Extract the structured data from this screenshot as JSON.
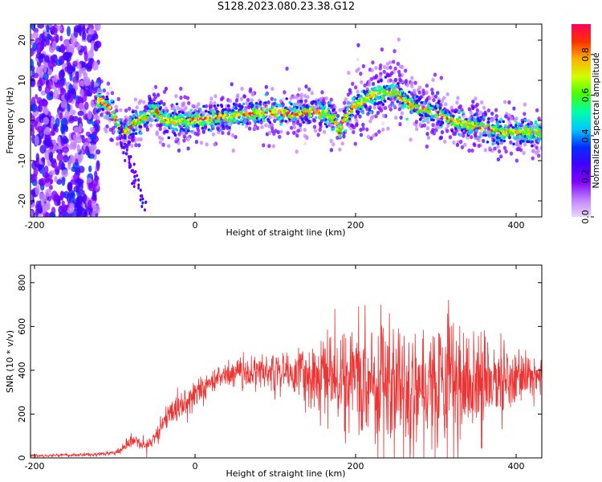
{
  "title": "S128.2023.080.23.38.G12",
  "colors": {
    "snr_line": "#ee3333",
    "spectrum_background": "#ffffff",
    "frame": "#000000",
    "colormap": [
      "#e8d8ff",
      "#c080ff",
      "#8000ff",
      "#4000ff",
      "#0030ff",
      "#00c8ff",
      "#00ffaa",
      "#44ff00",
      "#d0ff00",
      "#ffb000",
      "#ff3000",
      "#ff0060"
    ]
  },
  "chart_data": [
    {
      "type": "heatmap",
      "name": "spectrogram",
      "xlabel": "Height of straight line (km)",
      "ylabel": "Frequency (Hz)",
      "xlim": [
        -205,
        432
      ],
      "ylim": [
        -24,
        24
      ],
      "x_ticks": [
        -200,
        0,
        200,
        400
      ],
      "y_ticks": [
        20,
        10,
        0,
        -10,
        -20
      ],
      "grid": false,
      "colorbar": {
        "label": "Normalized spectral amplitude",
        "range": [
          0,
          0.95
        ],
        "ticks": [
          0.0,
          0.2,
          0.4,
          0.6,
          0.8
        ]
      },
      "signal_ridge": {
        "x": [
          -120,
          -110,
          -100,
          -95,
          -90,
          -85,
          -80,
          -70,
          -60,
          -50,
          -40,
          -20,
          0,
          20,
          40,
          60,
          80,
          100,
          120,
          140,
          160,
          175,
          180,
          185,
          195,
          210,
          230,
          250,
          260,
          280,
          300,
          320,
          340,
          360,
          380,
          400,
          432
        ],
        "y": [
          5,
          4,
          1,
          -2,
          -3,
          -3,
          -1,
          0,
          1,
          3,
          0,
          0,
          0,
          0.5,
          1,
          1.5,
          2,
          2,
          1.5,
          2,
          2,
          0,
          -3,
          0,
          3,
          5,
          7,
          7,
          5,
          3,
          2,
          0,
          -1,
          -2,
          -3,
          -3,
          -3
        ]
      }
    },
    {
      "type": "line",
      "name": "snr",
      "xlabel": "Height of straight line (km)",
      "ylabel": "SNR (10 * v/v)",
      "xlim": [
        -205,
        432
      ],
      "ylim": [
        0,
        880
      ],
      "x_ticks": [
        -200,
        0,
        200,
        400
      ],
      "y_ticks": [
        0,
        200,
        400,
        600,
        800
      ],
      "grid": false,
      "envelope": {
        "x": [
          -205,
          -120,
          -100,
          -90,
          -80,
          -70,
          -60,
          -50,
          -40,
          -30,
          -20,
          -10,
          0,
          10,
          20,
          30,
          40,
          60,
          80,
          100,
          120,
          140,
          160,
          180,
          200,
          220,
          240,
          260,
          280,
          300,
          320,
          340,
          360,
          380,
          400,
          420,
          432
        ],
        "mean": [
          10,
          15,
          25,
          40,
          80,
          60,
          50,
          100,
          160,
          200,
          240,
          260,
          290,
          320,
          350,
          370,
          380,
          390,
          390,
          395,
          390,
          380,
          370,
          360,
          360,
          355,
          350,
          350,
          350,
          345,
          345,
          345,
          350,
          355,
          360,
          365,
          370
        ],
        "spread": [
          5,
          8,
          10,
          15,
          30,
          25,
          30,
          40,
          50,
          55,
          60,
          60,
          60,
          60,
          55,
          55,
          60,
          70,
          80,
          90,
          100,
          130,
          160,
          200,
          230,
          260,
          280,
          290,
          290,
          280,
          260,
          230,
          200,
          160,
          120,
          90,
          80
        ]
      }
    }
  ]
}
